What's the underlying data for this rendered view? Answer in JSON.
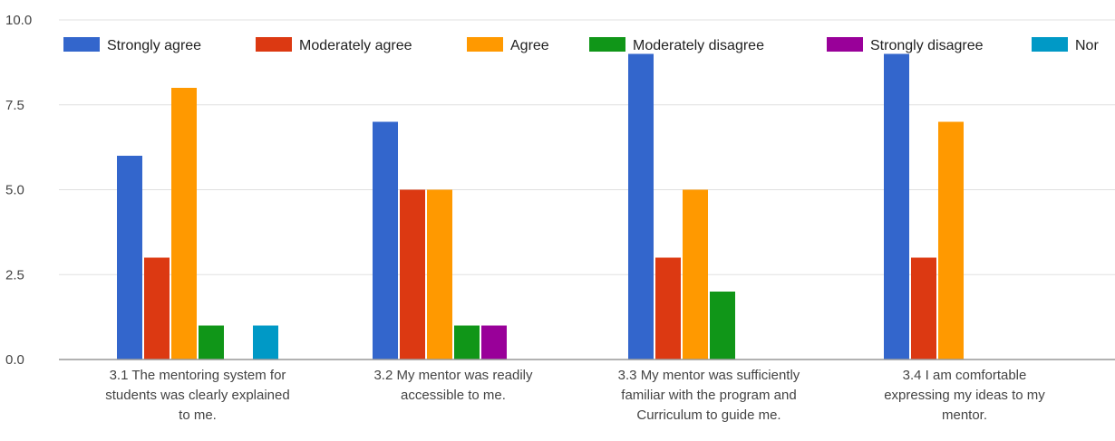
{
  "chart_data": {
    "type": "bar",
    "title": "",
    "xlabel": "",
    "ylabel": "",
    "ylim": [
      0,
      10
    ],
    "y_ticks": [
      "0.0",
      "2.5",
      "5.0",
      "7.5",
      "10.0"
    ],
    "grid": true,
    "legend_position": "top",
    "categories": [
      [
        "3.1 The mentoring system for",
        "students was clearly explained",
        "to me."
      ],
      [
        "3.2 My mentor was readily",
        "accessible to me."
      ],
      [
        "3.3 My mentor was sufficiently",
        "familiar with the program and",
        "Curriculum to guide me."
      ],
      [
        "3.4 I am comfortable",
        "expressing my ideas to my",
        "mentor."
      ]
    ],
    "series": [
      {
        "name": "Strongly agree",
        "color": "#3366cc",
        "values": [
          6,
          7,
          9,
          9
        ]
      },
      {
        "name": "Moderately agree",
        "color": "#dc3912",
        "values": [
          3,
          5,
          3,
          3
        ]
      },
      {
        "name": "Agree",
        "color": "#ff9900",
        "values": [
          8,
          5,
          5,
          7
        ]
      },
      {
        "name": "Moderately disagree",
        "color": "#109618",
        "values": [
          1,
          1,
          2,
          0
        ]
      },
      {
        "name": "Strongly disagree",
        "color": "#990099",
        "values": [
          0,
          1,
          0,
          0
        ]
      },
      {
        "name": "Nor",
        "color": "#0099c6",
        "values": [
          1,
          0,
          0,
          0
        ]
      }
    ]
  }
}
